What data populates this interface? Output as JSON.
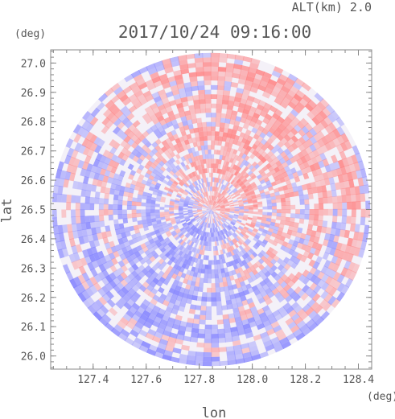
{
  "chart_data": {
    "type": "heatmap",
    "title": "2017/10/24 09:16:00",
    "altitude_label": "ALT(km) 2.0",
    "xlabel": "lon",
    "ylabel": "lat",
    "x_unit": "(deg)",
    "y_unit": "(deg)",
    "xlim": [
      127.24,
      128.45
    ],
    "ylim": [
      25.955,
      27.045
    ],
    "x_ticks": [
      "127.4",
      "127.6",
      "127.8",
      "128.0",
      "128.2",
      "128.4"
    ],
    "y_ticks": [
      "26.0",
      "26.1",
      "26.2",
      "26.3",
      "26.4",
      "26.5",
      "26.6",
      "26.7",
      "26.8",
      "26.9",
      "27.0"
    ],
    "radar_center": {
      "lon": 127.845,
      "lat": 26.5
    },
    "radar_range_deg": {
      "lon": 0.6,
      "lat": 0.535
    },
    "colors": {
      "positive": "#ff7f7f",
      "negative": "#7f7fff",
      "zero": "#ffffff",
      "frame": "#888888"
    },
    "grid": false
  }
}
